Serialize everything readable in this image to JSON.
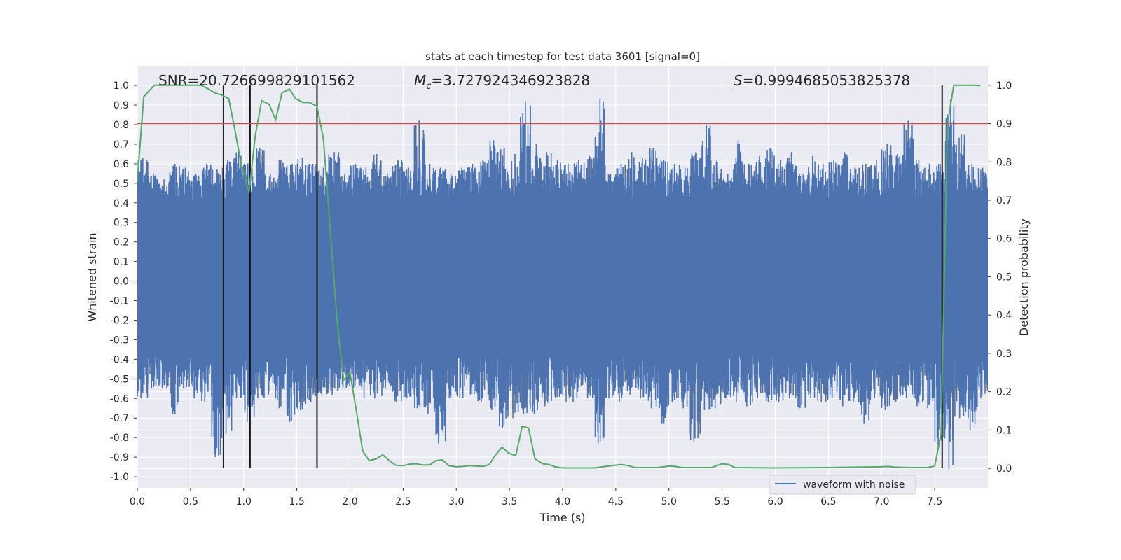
{
  "chart_data": {
    "type": "line",
    "title": "stats at each timestep for test data 3601 [signal=0]",
    "xlabel": "Time (s)",
    "ylabel": "Whitened strain",
    "ylabel_right": "Detection probability",
    "xlim": [
      0,
      8.0
    ],
    "ylim": [
      -1.057,
      1.097
    ],
    "ylim_right": [
      -0.051,
      1.049
    ],
    "xticks": [
      "0.0",
      "0.5",
      "1.0",
      "1.5",
      "2.0",
      "2.5",
      "3.0",
      "3.5",
      "4.0",
      "4.5",
      "5.0",
      "5.5",
      "6.0",
      "6.5",
      "7.0",
      "7.5"
    ],
    "yticks": [
      "1.0",
      "0.9",
      "0.8",
      "0.7",
      "0.6",
      "0.5",
      "0.4",
      "0.3",
      "0.2",
      "0.1",
      "0.0",
      "-0.1",
      "-0.2",
      "-0.3",
      "-0.4",
      "-0.5",
      "-0.6",
      "-0.7",
      "-0.8",
      "-0.9",
      "-1.0"
    ],
    "yticks_right": [
      "1.0",
      "0.9",
      "0.8",
      "0.7",
      "0.6",
      "0.5",
      "0.4",
      "0.3",
      "0.2",
      "0.1",
      "0.0"
    ],
    "grid": true,
    "legend": {
      "position": "bottom-right",
      "entries": [
        "waveform with noise"
      ]
    },
    "annotations": {
      "snr": "SNR=20.726699829101562",
      "mc_symbol": "M",
      "mc_sub": "c",
      "mc_value": "=3.727924346923828",
      "s_symbol": "S",
      "s_value": "=0.9994685053825378"
    },
    "threshold": {
      "value": 0.9,
      "axis": "right",
      "color": "#c44e52"
    },
    "markers_time": [
      0.81,
      1.06,
      1.69,
      7.57
    ],
    "waveform": {
      "name": "waveform with noise",
      "color": "#4c72b0",
      "bin_width_s": 0.1,
      "core_band": [
        -0.37,
        0.41
      ],
      "upper_envelope": [
        0.63,
        0.55,
        0.52,
        0.6,
        0.58,
        0.55,
        0.6,
        0.57,
        0.62,
        0.66,
        0.61,
        0.68,
        0.55,
        0.62,
        0.6,
        0.63,
        0.6,
        0.58,
        0.66,
        0.55,
        0.6,
        0.58,
        0.65,
        0.55,
        0.62,
        0.58,
        0.82,
        0.6,
        0.58,
        0.55,
        0.58,
        0.6,
        0.62,
        0.72,
        0.68,
        0.65,
        0.92,
        0.7,
        0.66,
        0.62,
        0.6,
        0.62,
        0.64,
        0.93,
        0.55,
        0.6,
        0.66,
        0.63,
        0.68,
        0.62,
        0.6,
        0.58,
        0.66,
        0.8,
        0.62,
        0.55,
        0.72,
        0.6,
        0.64,
        0.68,
        0.62,
        0.66,
        0.55,
        0.64,
        0.6,
        0.62,
        0.66,
        0.58,
        0.6,
        0.62,
        0.7,
        0.65,
        0.82,
        0.62,
        0.6,
        0.6,
        0.93,
        0.75,
        0.6,
        0.58
      ],
      "lower_envelope": [
        -0.6,
        -0.55,
        -0.55,
        -0.68,
        -0.55,
        -0.6,
        -0.62,
        -0.9,
        -0.78,
        -0.6,
        -0.72,
        -0.6,
        -0.58,
        -0.65,
        -0.72,
        -0.66,
        -0.62,
        -0.58,
        -0.58,
        -0.55,
        -0.55,
        -0.6,
        -0.6,
        -0.55,
        -0.62,
        -0.6,
        -0.65,
        -0.68,
        -0.83,
        -0.6,
        -0.6,
        -0.58,
        -0.62,
        -0.66,
        -0.75,
        -0.7,
        -0.68,
        -0.68,
        -0.64,
        -0.6,
        -0.62,
        -0.6,
        -0.6,
        -0.83,
        -0.6,
        -0.62,
        -0.58,
        -0.6,
        -0.65,
        -0.73,
        -0.62,
        -0.65,
        -0.82,
        -0.66,
        -0.65,
        -0.6,
        -0.62,
        -0.64,
        -0.6,
        -0.62,
        -0.62,
        -0.6,
        -0.65,
        -0.6,
        -0.62,
        -0.6,
        -0.64,
        -0.62,
        -0.73,
        -0.6,
        -0.66,
        -0.62,
        -0.6,
        -0.64,
        -0.65,
        -0.85,
        -0.96,
        -0.7,
        -0.76,
        -0.6
      ]
    },
    "probability": {
      "color": "#55a868",
      "t": [
        0.0,
        0.06,
        0.16,
        0.6,
        0.67,
        0.73,
        0.79,
        0.86,
        0.92,
        0.98,
        1.05,
        1.11,
        1.17,
        1.24,
        1.3,
        1.36,
        1.43,
        1.49,
        1.56,
        1.62,
        1.69,
        1.75,
        1.81,
        1.88,
        1.94,
        2.0,
        2.06,
        2.12,
        2.18,
        2.25,
        2.31,
        2.37,
        2.43,
        2.5,
        2.56,
        2.62,
        2.68,
        2.75,
        2.81,
        2.87,
        2.93,
        3.0,
        3.06,
        3.12,
        3.18,
        3.25,
        3.31,
        3.37,
        3.43,
        3.49,
        3.56,
        3.62,
        3.68,
        3.74,
        3.81,
        3.87,
        3.93,
        4.0,
        4.3,
        4.43,
        4.55,
        4.62,
        4.68,
        4.9,
        5.0,
        5.06,
        5.12,
        5.4,
        5.5,
        5.56,
        5.62,
        6.0,
        6.5,
        7.0,
        7.06,
        7.12,
        7.25,
        7.43,
        7.5,
        7.56,
        7.62,
        7.68,
        7.75,
        7.87,
        7.93
      ],
      "p": [
        0.75,
        0.97,
        1.0,
        1.0,
        0.99,
        0.98,
        0.975,
        0.965,
        0.88,
        0.79,
        0.72,
        0.87,
        0.96,
        0.95,
        0.91,
        0.98,
        0.99,
        0.965,
        0.955,
        0.955,
        0.945,
        0.86,
        0.64,
        0.38,
        0.23,
        0.25,
        0.15,
        0.045,
        0.02,
        0.025,
        0.035,
        0.02,
        0.008,
        0.007,
        0.011,
        0.012,
        0.009,
        0.009,
        0.02,
        0.022,
        0.007,
        0.004,
        0.005,
        0.007,
        0.006,
        0.005,
        0.01,
        0.035,
        0.055,
        0.04,
        0.033,
        0.11,
        0.105,
        0.025,
        0.012,
        0.01,
        0.004,
        0.001,
        0.001,
        0.006,
        0.01,
        0.007,
        0.002,
        0.002,
        0.006,
        0.005,
        0.002,
        0.002,
        0.012,
        0.01,
        0.002,
        0.001,
        0.002,
        0.004,
        0.005,
        0.003,
        0.002,
        0.002,
        0.006,
        0.09,
        0.9,
        1.0,
        1.0,
        1.0,
        0.999
      ]
    }
  }
}
